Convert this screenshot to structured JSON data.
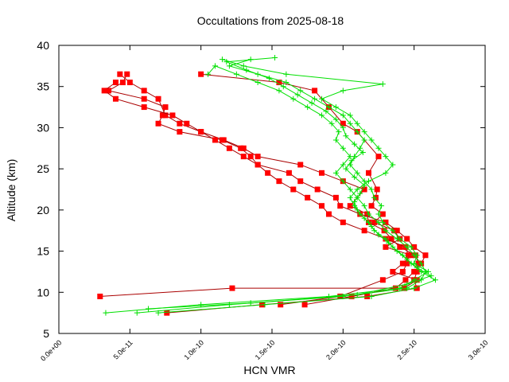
{
  "chart_data": {
    "type": "line",
    "title": "Occultations from 2025-08-18",
    "xlabel": "HCN VMR",
    "ylabel": "Altitude (km)",
    "xlim": [
      0,
      3e-10
    ],
    "ylim": [
      5,
      40
    ],
    "x_ticks": [
      0,
      5e-11,
      1e-10,
      1.5e-10,
      2e-10,
      2.5e-10,
      3e-10
    ],
    "x_tick_labels": [
      "0.0e+00",
      "5.0e-11",
      "1.0e-10",
      "1.5e-10",
      "2.0e-10",
      "2.5e-10",
      "3.0e-10"
    ],
    "y_ticks": [
      5,
      10,
      15,
      20,
      25,
      30,
      35,
      40
    ],
    "y_tick_labels": [
      "5",
      "10",
      "15",
      "20",
      "25",
      "30",
      "35",
      "40"
    ],
    "grid": false,
    "legend": "none",
    "series": [
      {
        "color": "#ff0000",
        "line_color": "#aa0000",
        "marker": "square",
        "points": [
          [
            2.9e-11,
            9.5
          ],
          [
            1.22e-10,
            10.5
          ],
          [
            2.43e-10,
            10.5
          ],
          [
            2.52e-10,
            11.5
          ],
          [
            2.35e-10,
            12.5
          ],
          [
            2.42e-10,
            13.5
          ],
          [
            2.48e-10,
            14.5
          ],
          [
            2.3e-10,
            15.5
          ],
          [
            2.4e-10,
            16.5
          ],
          [
            2.36e-10,
            17.5
          ],
          [
            2.22e-10,
            18.5
          ],
          [
            2.28e-10,
            19.5
          ],
          [
            2.2e-10,
            20.5
          ],
          [
            2.23e-10,
            21.5
          ],
          [
            2.24e-10,
            22.5
          ],
          [
            2.18e-10,
            24.5
          ],
          [
            2.25e-10,
            26.5
          ],
          [
            2.1e-10,
            29.5
          ],
          [
            2e-10,
            30.5
          ],
          [
            1.9e-10,
            32.5
          ],
          [
            1.8e-10,
            34.5
          ],
          [
            1.55e-10,
            35.5
          ],
          [
            1e-10,
            36.5
          ]
        ]
      },
      {
        "color": "#ff0000",
        "line_color": "#aa0000",
        "marker": "square",
        "points": [
          [
            7.6e-11,
            7.5
          ],
          [
            1.43e-10,
            8.5
          ],
          [
            2.17e-10,
            9.5
          ],
          [
            2.52e-10,
            10.5
          ],
          [
            2.5e-10,
            11.5
          ],
          [
            2.52e-10,
            12.5
          ],
          [
            2.53e-10,
            13.5
          ],
          [
            2.51e-10,
            14.5
          ],
          [
            2.4e-10,
            15.5
          ],
          [
            2.34e-10,
            16.5
          ],
          [
            2.29e-10,
            17.5
          ],
          [
            2.18e-10,
            18.5
          ],
          [
            2.17e-10,
            19.5
          ],
          [
            2.05e-10,
            20.5
          ],
          [
            2.15e-10,
            22.5
          ],
          [
            2e-10,
            23.5
          ],
          [
            1.85e-10,
            24.5
          ],
          [
            1.7e-10,
            25.5
          ],
          [
            1.4e-10,
            26.5
          ],
          [
            1.3e-10,
            27.5
          ],
          [
            1.16e-10,
            28.5
          ],
          [
            1e-10,
            29.5
          ],
          [
            8.5e-11,
            30.5
          ],
          [
            7.5e-11,
            31.5
          ],
          [
            7e-11,
            33.5
          ],
          [
            6e-11,
            34.5
          ],
          [
            5e-11,
            35.5
          ],
          [
            4.3e-11,
            36.5
          ]
        ]
      },
      {
        "color": "#ff0000",
        "line_color": "#aa0000",
        "marker": "square",
        "points": [
          [
            1.56e-10,
            8.5
          ],
          [
            1.98e-10,
            9.5
          ],
          [
            2.28e-10,
            11.5
          ],
          [
            2.42e-10,
            12.5
          ],
          [
            2.45e-10,
            13.5
          ],
          [
            2.46e-10,
            14.5
          ],
          [
            2.44e-10,
            15.5
          ],
          [
            2.3e-10,
            16.5
          ],
          [
            2.15e-10,
            17.5
          ],
          [
            2e-10,
            18.5
          ],
          [
            1.9e-10,
            19.5
          ],
          [
            1.85e-10,
            20.5
          ],
          [
            1.75e-10,
            21.5
          ],
          [
            1.65e-10,
            22.5
          ],
          [
            1.55e-10,
            23.5
          ],
          [
            1.47e-10,
            24.5
          ],
          [
            1.4e-10,
            25.5
          ],
          [
            1.35e-10,
            26.5
          ],
          [
            1.28e-10,
            27.5
          ],
          [
            1.15e-10,
            28.5
          ],
          [
            8.5e-11,
            29.5
          ],
          [
            7e-11,
            30.5
          ],
          [
            7.3e-11,
            31.5
          ],
          [
            7.5e-11,
            32.5
          ],
          [
            6e-11,
            33.5
          ],
          [
            3.5e-11,
            34.5
          ],
          [
            4.5e-11,
            35.5
          ],
          [
            4.8e-11,
            36.5
          ]
        ]
      },
      {
        "color": "#ff0000",
        "line_color": "#aa0000",
        "marker": "square",
        "points": [
          [
            1.73e-10,
            8.5
          ],
          [
            2.06e-10,
            9.5
          ],
          [
            2.37e-10,
            10.5
          ],
          [
            2.44e-10,
            11.5
          ],
          [
            2.5e-10,
            12.5
          ],
          [
            2.55e-10,
            13.5
          ],
          [
            2.58e-10,
            14.5
          ],
          [
            2.5e-10,
            15.5
          ],
          [
            2.45e-10,
            16.5
          ],
          [
            2.38e-10,
            17.5
          ],
          [
            2.3e-10,
            18.5
          ],
          [
            2.12e-10,
            19.5
          ],
          [
            1.98e-10,
            20.5
          ],
          [
            1.95e-10,
            21.5
          ],
          [
            1.82e-10,
            22.5
          ],
          [
            1.7e-10,
            23.5
          ],
          [
            1.62e-10,
            24.5
          ],
          [
            1.4e-10,
            25.5
          ],
          [
            1.3e-10,
            26.5
          ],
          [
            1.2e-10,
            27.5
          ],
          [
            1.1e-10,
            28.5
          ],
          [
            1e-10,
            29.5
          ],
          [
            9e-11,
            30.5
          ],
          [
            8e-11,
            31.5
          ],
          [
            6e-11,
            32.5
          ],
          [
            4e-11,
            33.5
          ],
          [
            3.2e-11,
            34.5
          ],
          [
            4e-11,
            35.5
          ]
        ]
      },
      {
        "color": "#00e000",
        "line_color": "#00e000",
        "marker": "plus",
        "points": [
          [
            3.3e-11,
            7.5
          ],
          [
            1e-10,
            8.5
          ],
          [
            1.9e-10,
            9.5
          ],
          [
            2.4e-10,
            10.5
          ],
          [
            2.5e-10,
            11.5
          ],
          [
            2.6e-10,
            12.5
          ],
          [
            2.5e-10,
            13.5
          ],
          [
            2.52e-10,
            14.5
          ],
          [
            2.48e-10,
            15.5
          ],
          [
            2.4e-10,
            16.5
          ],
          [
            2.35e-10,
            17.5
          ],
          [
            2.28e-10,
            18.5
          ],
          [
            2.25e-10,
            19.5
          ],
          [
            2.27e-10,
            20.5
          ],
          [
            2.22e-10,
            21.5
          ],
          [
            2.2e-10,
            22.5
          ],
          [
            2.15e-10,
            23.5
          ],
          [
            2.1e-10,
            24.5
          ],
          [
            2.05e-10,
            25.5
          ],
          [
            2.08e-10,
            26.5
          ],
          [
            2.12e-10,
            27.5
          ],
          [
            2.15e-10,
            28.5
          ],
          [
            2.1e-10,
            29.5
          ],
          [
            2.05e-10,
            30.5
          ],
          [
            2e-10,
            31.5
          ],
          [
            1.9e-10,
            32.5
          ],
          [
            1.8e-10,
            33.5
          ],
          [
            1.7e-10,
            34.5
          ],
          [
            1.6e-10,
            35.5
          ],
          [
            1.4e-10,
            36.5
          ],
          [
            1.2e-10,
            37.5
          ],
          [
            1.35e-10,
            38.3
          ]
        ]
      },
      {
        "color": "#00e000",
        "line_color": "#00e000",
        "marker": "plus",
        "points": [
          [
            5.5e-11,
            7.5
          ],
          [
            1.2e-10,
            8.5
          ],
          [
            2e-10,
            9.5
          ],
          [
            2.45e-10,
            10.5
          ],
          [
            2.55e-10,
            11.5
          ],
          [
            2.58e-10,
            12.5
          ],
          [
            2.55e-10,
            13.5
          ],
          [
            2.5e-10,
            14.5
          ],
          [
            2.45e-10,
            15.5
          ],
          [
            2.38e-10,
            16.5
          ],
          [
            2.3e-10,
            17.5
          ],
          [
            2.25e-10,
            18.5
          ],
          [
            2.18e-10,
            19.5
          ],
          [
            2.15e-10,
            20.5
          ],
          [
            2.1e-10,
            21.5
          ],
          [
            2.05e-10,
            22.5
          ],
          [
            2e-10,
            23.5
          ],
          [
            1.95e-10,
            24.5
          ],
          [
            2e-10,
            25.5
          ],
          [
            2.05e-10,
            26.5
          ],
          [
            2e-10,
            27.5
          ],
          [
            1.95e-10,
            28.5
          ],
          [
            1.97e-10,
            29.5
          ],
          [
            1.92e-10,
            30.5
          ],
          [
            1.85e-10,
            31.5
          ],
          [
            1.75e-10,
            32.5
          ],
          [
            1.65e-10,
            33.5
          ],
          [
            1.55e-10,
            34.5
          ],
          [
            1.4e-10,
            35.5
          ],
          [
            1.25e-10,
            36.5
          ],
          [
            1.1e-10,
            37.5
          ],
          [
            1.05e-10,
            36.5
          ]
        ]
      },
      {
        "color": "#00e000",
        "line_color": "#00e000",
        "marker": "plus",
        "points": [
          [
            7e-11,
            7.5
          ],
          [
            1.45e-10,
            8.5
          ],
          [
            2.2e-10,
            9.5
          ],
          [
            2.5e-10,
            10.5
          ],
          [
            2.65e-10,
            11.5
          ],
          [
            2.55e-10,
            12.5
          ],
          [
            2.48e-10,
            13.5
          ],
          [
            2.42e-10,
            14.5
          ],
          [
            2.35e-10,
            15.5
          ],
          [
            2.3e-10,
            16.5
          ],
          [
            2.22e-10,
            17.5
          ],
          [
            2.18e-10,
            18.5
          ],
          [
            2.12e-10,
            19.5
          ],
          [
            2.08e-10,
            20.5
          ],
          [
            2.05e-10,
            21.5
          ],
          [
            2.1e-10,
            22.5
          ],
          [
            2.18e-10,
            23.5
          ],
          [
            2.3e-10,
            24.5
          ],
          [
            2.35e-10,
            25.5
          ],
          [
            2.3e-10,
            26.5
          ],
          [
            2.25e-10,
            27.5
          ],
          [
            2.2e-10,
            28.5
          ],
          [
            2.15e-10,
            29.5
          ],
          [
            2.1e-10,
            30.5
          ],
          [
            2.05e-10,
            31.5
          ],
          [
            1.95e-10,
            32.5
          ],
          [
            1.85e-10,
            33.5
          ],
          [
            2e-10,
            34.5
          ],
          [
            2.28e-10,
            35.3
          ],
          [
            1.6e-10,
            36.5
          ],
          [
            1.3e-10,
            37.5
          ],
          [
            1.15e-10,
            38.3
          ]
        ]
      },
      {
        "color": "#00e000",
        "line_color": "#00e000",
        "marker": "plus",
        "points": [
          [
            6.3e-11,
            8.0
          ],
          [
            1.35e-10,
            8.7
          ],
          [
            2.1e-10,
            9.7
          ],
          [
            2.45e-10,
            11.0
          ],
          [
            2.62e-10,
            12.0
          ],
          [
            2.52e-10,
            13.0
          ],
          [
            2.45e-10,
            14.0
          ],
          [
            2.38e-10,
            15.0
          ],
          [
            2.32e-10,
            16.0
          ],
          [
            2.25e-10,
            17.0
          ],
          [
            2.2e-10,
            18.0
          ],
          [
            2.15e-10,
            19.0
          ],
          [
            2.1e-10,
            20.0
          ],
          [
            2.08e-10,
            21.0
          ],
          [
            2.12e-10,
            22.0
          ],
          [
            2.15e-10,
            23.0
          ],
          [
            2.08e-10,
            24.0
          ],
          [
            2.02e-10,
            25.0
          ],
          [
            2.06e-10,
            26.0
          ],
          [
            2.14e-10,
            27.0
          ],
          [
            2.08e-10,
            28.0
          ],
          [
            2.02e-10,
            29.0
          ],
          [
            2e-10,
            30.0
          ],
          [
            1.95e-10,
            31.0
          ],
          [
            1.88e-10,
            32.0
          ],
          [
            1.78e-10,
            33.0
          ],
          [
            1.68e-10,
            34.0
          ],
          [
            1.58e-10,
            35.0
          ],
          [
            1.48e-10,
            36.0
          ],
          [
            1.32e-10,
            37.0
          ],
          [
            1.18e-10,
            38.0
          ],
          [
            1.52e-10,
            38.5
          ]
        ]
      }
    ]
  }
}
